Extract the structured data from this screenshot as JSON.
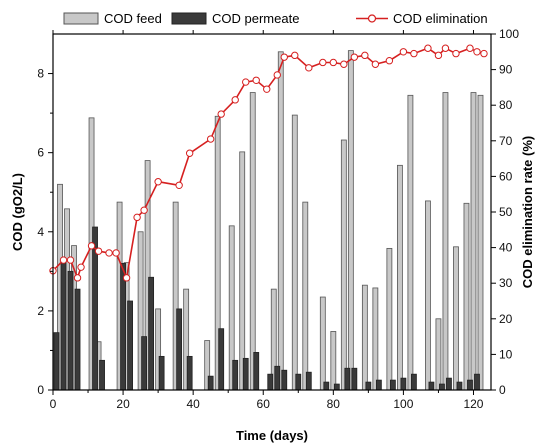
{
  "chart_data": {
    "type": "bar",
    "title": "",
    "xlabel": "Time (days)",
    "ylabel": "COD (gO2/L)",
    "y2label": "COD elimination rate (%)",
    "xlim": [
      0,
      125
    ],
    "ylim": [
      0,
      9
    ],
    "y2lim": [
      0,
      100
    ],
    "x_ticks": [
      0,
      20,
      40,
      60,
      80,
      100,
      120
    ],
    "y_ticks": [
      0,
      2,
      4,
      6,
      8
    ],
    "y2_ticks": [
      0,
      10,
      20,
      30,
      40,
      50,
      60,
      70,
      80,
      90,
      100
    ],
    "grid": false,
    "legend_position": "top",
    "colors": {
      "feed": "#c8c8c8",
      "permeate": "#3a3a3a",
      "line": "#d62020"
    },
    "series": [
      {
        "name": "COD feed",
        "kind": "bar",
        "points": [
          {
            "x": 2,
            "y": 5.2
          },
          {
            "x": 4,
            "y": 4.58
          },
          {
            "x": 6,
            "y": 3.65
          },
          {
            "x": 11,
            "y": 6.88
          },
          {
            "x": 13,
            "y": 1.22
          },
          {
            "x": 19,
            "y": 4.75
          },
          {
            "x": 21,
            "y": 3.22
          },
          {
            "x": 25,
            "y": 4.0
          },
          {
            "x": 27,
            "y": 5.8
          },
          {
            "x": 30,
            "y": 2.05
          },
          {
            "x": 35,
            "y": 4.75
          },
          {
            "x": 38,
            "y": 2.55
          },
          {
            "x": 44,
            "y": 1.25
          },
          {
            "x": 47,
            "y": 6.92
          },
          {
            "x": 51,
            "y": 4.15
          },
          {
            "x": 54,
            "y": 6.02
          },
          {
            "x": 57,
            "y": 7.52
          },
          {
            "x": 63,
            "y": 2.55
          },
          {
            "x": 65,
            "y": 8.55
          },
          {
            "x": 69,
            "y": 6.95
          },
          {
            "x": 72,
            "y": 4.75
          },
          {
            "x": 77,
            "y": 2.35
          },
          {
            "x": 80,
            "y": 1.48
          },
          {
            "x": 83,
            "y": 6.32
          },
          {
            "x": 85,
            "y": 8.58
          },
          {
            "x": 89,
            "y": 2.65
          },
          {
            "x": 92,
            "y": 2.58
          },
          {
            "x": 96,
            "y": 3.58
          },
          {
            "x": 99,
            "y": 5.68
          },
          {
            "x": 102,
            "y": 7.45
          },
          {
            "x": 107,
            "y": 4.78
          },
          {
            "x": 110,
            "y": 1.8
          },
          {
            "x": 112,
            "y": 7.52
          },
          {
            "x": 115,
            "y": 3.62
          },
          {
            "x": 118,
            "y": 4.72
          },
          {
            "x": 120,
            "y": 7.52
          },
          {
            "x": 122,
            "y": 7.45
          }
        ]
      },
      {
        "name": "COD permeate",
        "kind": "bar",
        "points": [
          {
            "x": 1,
            "y": 1.45
          },
          {
            "x": 3,
            "y": 3.25
          },
          {
            "x": 5,
            "y": 3.0
          },
          {
            "x": 7,
            "y": 2.55
          },
          {
            "x": 12,
            "y": 4.12
          },
          {
            "x": 14,
            "y": 0.75
          },
          {
            "x": 20,
            "y": 3.2
          },
          {
            "x": 22,
            "y": 2.25
          },
          {
            "x": 26,
            "y": 1.35
          },
          {
            "x": 28,
            "y": 2.85
          },
          {
            "x": 31,
            "y": 0.85
          },
          {
            "x": 36,
            "y": 2.05
          },
          {
            "x": 39,
            "y": 0.85
          },
          {
            "x": 45,
            "y": 0.35
          },
          {
            "x": 48,
            "y": 1.55
          },
          {
            "x": 52,
            "y": 0.75
          },
          {
            "x": 55,
            "y": 0.8
          },
          {
            "x": 58,
            "y": 0.95
          },
          {
            "x": 62,
            "y": 0.4
          },
          {
            "x": 64,
            "y": 0.6
          },
          {
            "x": 66,
            "y": 0.5
          },
          {
            "x": 70,
            "y": 0.4
          },
          {
            "x": 73,
            "y": 0.45
          },
          {
            "x": 78,
            "y": 0.2
          },
          {
            "x": 81,
            "y": 0.15
          },
          {
            "x": 84,
            "y": 0.55
          },
          {
            "x": 86,
            "y": 0.55
          },
          {
            "x": 90,
            "y": 0.2
          },
          {
            "x": 93,
            "y": 0.25
          },
          {
            "x": 97,
            "y": 0.25
          },
          {
            "x": 100,
            "y": 0.3
          },
          {
            "x": 103,
            "y": 0.4
          },
          {
            "x": 108,
            "y": 0.2
          },
          {
            "x": 111,
            "y": 0.15
          },
          {
            "x": 113,
            "y": 0.3
          },
          {
            "x": 116,
            "y": 0.2
          },
          {
            "x": 119,
            "y": 0.25
          },
          {
            "x": 121,
            "y": 0.4
          }
        ]
      },
      {
        "name": "COD elimination",
        "kind": "line",
        "axis": "right",
        "points": [
          {
            "x": 0,
            "y": 33.5
          },
          {
            "x": 3,
            "y": 36.5
          },
          {
            "x": 5,
            "y": 36.5
          },
          {
            "x": 7,
            "y": 31.5
          },
          {
            "x": 8,
            "y": 34.5
          },
          {
            "x": 11,
            "y": 40.5
          },
          {
            "x": 13,
            "y": 39.0
          },
          {
            "x": 16,
            "y": 38.5
          },
          {
            "x": 18,
            "y": 38.5
          },
          {
            "x": 21,
            "y": 31.5
          },
          {
            "x": 24,
            "y": 48.5
          },
          {
            "x": 26,
            "y": 50.5
          },
          {
            "x": 30,
            "y": 58.5
          },
          {
            "x": 36,
            "y": 57.5
          },
          {
            "x": 39,
            "y": 66.5
          },
          {
            "x": 45,
            "y": 70.5
          },
          {
            "x": 48,
            "y": 77.5
          },
          {
            "x": 52,
            "y": 81.5
          },
          {
            "x": 55,
            "y": 86.5
          },
          {
            "x": 58,
            "y": 87.0
          },
          {
            "x": 61,
            "y": 84.5
          },
          {
            "x": 64,
            "y": 88.5
          },
          {
            "x": 66,
            "y": 93.5
          },
          {
            "x": 69,
            "y": 94.0
          },
          {
            "x": 73,
            "y": 90.5
          },
          {
            "x": 77,
            "y": 92.0
          },
          {
            "x": 80,
            "y": 92.0
          },
          {
            "x": 83,
            "y": 91.5
          },
          {
            "x": 86,
            "y": 93.5
          },
          {
            "x": 89,
            "y": 94.0
          },
          {
            "x": 92,
            "y": 91.5
          },
          {
            "x": 96,
            "y": 92.5
          },
          {
            "x": 100,
            "y": 95.0
          },
          {
            "x": 103,
            "y": 94.5
          },
          {
            "x": 107,
            "y": 96.0
          },
          {
            "x": 110,
            "y": 94.0
          },
          {
            "x": 112,
            "y": 96.0
          },
          {
            "x": 115,
            "y": 94.5
          },
          {
            "x": 119,
            "y": 96.0
          },
          {
            "x": 121,
            "y": 95.0
          },
          {
            "x": 123,
            "y": 94.5
          }
        ]
      }
    ]
  }
}
